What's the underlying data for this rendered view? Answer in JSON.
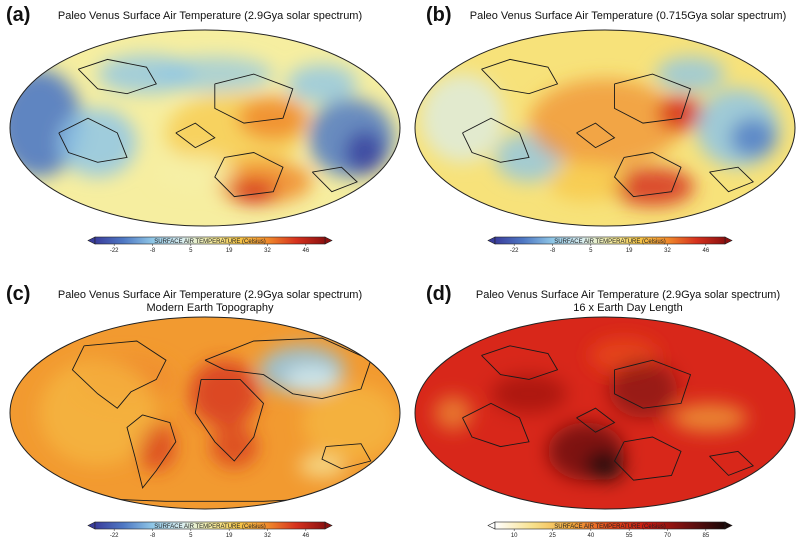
{
  "panels": [
    {
      "letter": "(a)",
      "title": "Paleo Venus Surface Air Temperature (2.9Gya solar spectrum)",
      "subtitle": "",
      "colorbar": {
        "label": "SURFACE AIR TEMPERATURE (Celsius)",
        "ticks": [
          "-22",
          "-8",
          "5",
          "19",
          "32",
          "46"
        ],
        "scale": "blue-yellow-red"
      }
    },
    {
      "letter": "(b)",
      "title": "Paleo Venus Surface Air Temperature (0.715Gya solar spectrum)",
      "subtitle": "",
      "colorbar": {
        "label": "SURFACE AIR TEMPERATURE (Celsius)",
        "ticks": [
          "-22",
          "-8",
          "5",
          "19",
          "32",
          "46"
        ],
        "scale": "blue-yellow-red"
      }
    },
    {
      "letter": "(c)",
      "title": "Paleo Venus Surface Air Temperature (2.9Gya solar spectrum)",
      "subtitle": "Modern Earth Topography",
      "colorbar": {
        "label": "SURFACE AIR TEMPERATURE (Celsius)",
        "ticks": [
          "-22",
          "-8",
          "5",
          "19",
          "32",
          "46"
        ],
        "scale": "blue-yellow-red"
      }
    },
    {
      "letter": "(d)",
      "title": "Paleo Venus Surface Air Temperature (2.9Gya solar spectrum)",
      "subtitle": "16 x Earth Day Length",
      "colorbar": {
        "label": "SURFACE AIR TEMPERATURE (Celsius)",
        "ticks": [
          "10",
          "25",
          "40",
          "55",
          "70",
          "85"
        ],
        "scale": "white-red-black"
      }
    }
  ],
  "colors": {
    "blue_yellow_red": [
      "#3a3d9c",
      "#4f79c4",
      "#8fc6e6",
      "#d8eef2",
      "#f6f0a8",
      "#f7c84a",
      "#f08a2c",
      "#d6321e",
      "#8c1010"
    ],
    "white_red_black": [
      "#ffffff",
      "#f7e08a",
      "#f2a93c",
      "#e84a1c",
      "#c41810",
      "#6e1010",
      "#1a0808"
    ],
    "coastline": "#1a1a1a"
  }
}
